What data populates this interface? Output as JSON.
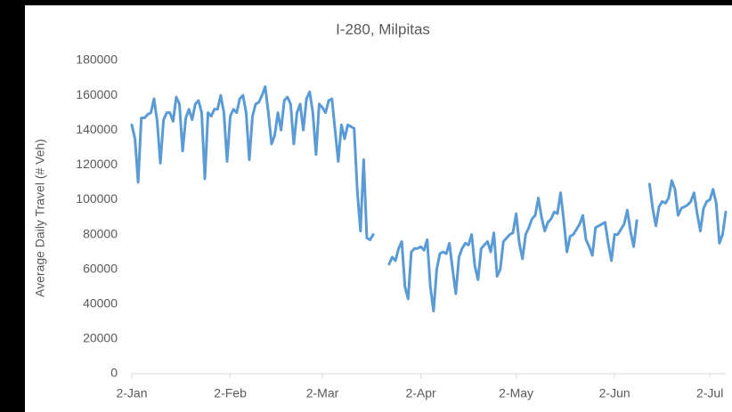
{
  "chart_data": {
    "type": "line",
    "title": "I-280, Milpitas",
    "y_label": "Average Daily Travel (# Veh)",
    "categories": [
      "2-Jan",
      null,
      null,
      null,
      null,
      null,
      null,
      null,
      null,
      null,
      null,
      null,
      null,
      null,
      null,
      null,
      null,
      null,
      null,
      null,
      null,
      null,
      null,
      null,
      null,
      null,
      null,
      null,
      null,
      null,
      null,
      "2-Feb",
      null,
      null,
      null,
      null,
      null,
      null,
      null,
      null,
      null,
      null,
      null,
      null,
      null,
      null,
      null,
      null,
      null,
      null,
      null,
      null,
      null,
      null,
      null,
      null,
      null,
      null,
      null,
      null,
      "2-Mar",
      null,
      null,
      null,
      null,
      null,
      null,
      null,
      null,
      null,
      null,
      null,
      null,
      null,
      null,
      null,
      null,
      null,
      null,
      null,
      null,
      null,
      null,
      null,
      null,
      null,
      null,
      null,
      null,
      null,
      null,
      "2-Apr",
      null,
      null,
      null,
      null,
      null,
      null,
      null,
      null,
      null,
      null,
      null,
      null,
      null,
      null,
      null,
      null,
      null,
      null,
      null,
      null,
      null,
      null,
      null,
      null,
      null,
      null,
      null,
      null,
      null,
      "2-May",
      null,
      null,
      null,
      null,
      null,
      null,
      null,
      null,
      null,
      null,
      null,
      null,
      null,
      null,
      null,
      null,
      null,
      null,
      null,
      null,
      null,
      null,
      null,
      null,
      null,
      null,
      null,
      null,
      null,
      null,
      "2-Jun",
      null,
      null,
      null,
      null,
      null,
      null,
      null,
      null,
      null,
      null,
      null,
      null,
      null,
      null,
      null,
      null,
      null,
      null,
      null,
      null,
      null,
      null,
      null,
      null,
      null,
      null,
      null,
      null,
      null,
      "2-Jul",
      null,
      null,
      null,
      null,
      null
    ],
    "series": [
      {
        "name": "I-280, Milpitas",
        "color": "#5b9bd5",
        "values": [
          143000,
          135000,
          110000,
          147000,
          147000,
          149000,
          150000,
          158000,
          145000,
          121000,
          146000,
          150000,
          150000,
          145000,
          159000,
          155000,
          128000,
          147000,
          152000,
          146000,
          155000,
          157000,
          150000,
          112000,
          150000,
          148000,
          152000,
          152000,
          160000,
          150000,
          122000,
          148000,
          152000,
          150000,
          158000,
          160000,
          150000,
          123000,
          148000,
          155000,
          156000,
          160000,
          165000,
          150000,
          132000,
          137000,
          150000,
          140000,
          157000,
          159000,
          155000,
          132000,
          150000,
          155000,
          140000,
          158000,
          162000,
          150000,
          126000,
          155000,
          153000,
          150000,
          157000,
          158000,
          140000,
          122000,
          143000,
          135000,
          143000,
          142000,
          141000,
          105000,
          82000,
          123000,
          78000,
          77000,
          80000,
          null,
          null,
          null,
          null,
          63000,
          67000,
          65000,
          72000,
          76000,
          50000,
          43000,
          70000,
          72000,
          72000,
          73000,
          71000,
          77000,
          50000,
          36000,
          60000,
          69000,
          70000,
          69000,
          75000,
          60000,
          46000,
          67000,
          72000,
          75000,
          74000,
          80000,
          62000,
          54000,
          72000,
          74000,
          76000,
          70000,
          81000,
          56000,
          60000,
          76000,
          78000,
          80000,
          81000,
          92000,
          75000,
          66000,
          80000,
          84000,
          89000,
          91000,
          101000,
          90000,
          82000,
          87000,
          89000,
          93000,
          92000,
          104000,
          88000,
          70000,
          79000,
          80000,
          83000,
          86000,
          91000,
          77000,
          73000,
          68000,
          84000,
          85000,
          86000,
          87000,
          75000,
          65000,
          80000,
          80000,
          83000,
          86000,
          94000,
          82000,
          73000,
          88000,
          null,
          null,
          null,
          109000,
          95000,
          85000,
          96000,
          99000,
          98000,
          101000,
          111000,
          106000,
          91000,
          95000,
          96000,
          97000,
          99000,
          104000,
          92000,
          82000,
          95000,
          99000,
          100000,
          106000,
          98000,
          75000,
          80000,
          93000
        ]
      }
    ],
    "ylim": [
      0,
      180000
    ],
    "yticks": [
      0,
      20000,
      40000,
      60000,
      80000,
      100000,
      120000,
      140000,
      160000,
      180000
    ],
    "grid": false
  }
}
